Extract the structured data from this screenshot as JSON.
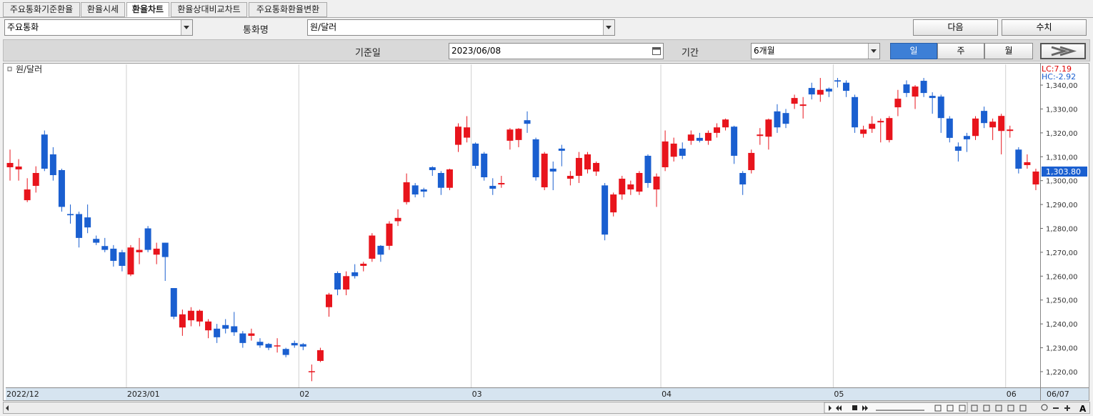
{
  "tabs": [
    "주요통화기준환율",
    "환율시세",
    "환율차트",
    "환율상대비교차트",
    "주요통화환율변환"
  ],
  "active_tab": 2,
  "controls": {
    "category_select": "주요통화",
    "currency_label": "통화명",
    "currency_select": "원/달러",
    "next_button": "다음",
    "values_button": "수치",
    "date_label": "기준일",
    "date_value": "2023/06/08",
    "period_label": "기간",
    "period_select": "6개월",
    "interval_buttons": [
      "일",
      "주",
      "월"
    ],
    "active_interval": 0
  },
  "chart_data": {
    "type": "candlestick",
    "up_color": "#e8141c",
    "down_color": "#1a5fd0",
    "categories": [
      "2022/12",
      null,
      null,
      null,
      null,
      null,
      null,
      null,
      null,
      null,
      null,
      null,
      null,
      null,
      "2023/01",
      null,
      null,
      null,
      null,
      null,
      null,
      null,
      null,
      null,
      null,
      null,
      null,
      null,
      null,
      null,
      null,
      null,
      null,
      null,
      "02",
      null,
      null,
      null,
      null,
      null,
      null,
      null,
      null,
      null,
      null,
      null,
      null,
      null,
      null,
      null,
      null,
      null,
      null,
      null,
      "03",
      null,
      null,
      null,
      null,
      null,
      null,
      null,
      null,
      null,
      null,
      null,
      null,
      null,
      null,
      null,
      null,
      null,
      null,
      null,
      null,
      null,
      "04",
      null,
      null,
      null,
      null,
      null,
      null,
      null,
      null,
      null,
      null,
      null,
      null,
      null,
      null,
      null,
      null,
      null,
      null,
      null,
      "05",
      null,
      null,
      null,
      null,
      null,
      null,
      null,
      null,
      null,
      null,
      null,
      null,
      null,
      null,
      null,
      null,
      null,
      null,
      null,
      "06",
      null,
      null,
      null
    ],
    "x_end_label": "06/07",
    "x_grid": true,
    "series": [
      {
        "name": "원/달러",
        "open": [
          1305.6,
          1304.7,
          1291.8,
          1297.8,
          1319.3,
          1311,
          1304.4,
          1286,
          1286,
          1284.6,
          1275.6,
          1272.6,
          1271.5,
          1270,
          1260.7,
          1270,
          1280,
          1269,
          1274,
          1255,
          1238.5,
          1241.5,
          1241,
          1237.3,
          1238,
          1239.5,
          1239,
          1236,
          1235,
          1232.5,
          1231.6,
          1231,
          1229.5,
          1232,
          1231.5,
          1219.8,
          1224.5,
          1247,
          1261.3,
          1254.4,
          1261.6,
          1264.3,
          1267.3,
          1272.7,
          1272.7,
          1283,
          1291,
          1298,
          1296.3,
          1305.6,
          1303.2,
          1297,
          1315,
          1318,
          1315.5,
          1311.3,
          1297.8,
          1298.4,
          1316.7,
          1317,
          1325.3,
          1317.3,
          1297.2,
          1305,
          1313.4,
          1300.8,
          1302,
          1304.7,
          1303.8,
          1298,
          1286.7,
          1294.2,
          1296.3,
          1295.4,
          1310.4,
          1296.3,
          1305.6,
          1310,
          1313.4,
          1316.7,
          1317.9,
          1316.7,
          1320,
          1322.3,
          1322.6,
          1303.2,
          1304.4,
          1318.7,
          1318.4,
          1329,
          1328.3,
          1332.2,
          1331.3,
          1338.8,
          1336,
          1338.5,
          1342,
          1341,
          1335,
          1319.6,
          1321.7,
          1324.4,
          1317,
          1330.7,
          1340.3,
          1335.2,
          1341.8,
          1335.5,
          1335.2,
          1326,
          1314.3,
          1318.7,
          1318.7,
          1329.2,
          1322.3,
          1320.8,
          1320.8,
          1313,
          1306.5,
          1298.4
        ],
        "high": [
          1313,
          1309,
          1301,
          1306,
          1321,
          1314,
          1305,
          1290,
          1287,
          1290,
          1277,
          1276,
          1273,
          1271,
          1273,
          1276,
          1281,
          1274,
          1274,
          1255,
          1246,
          1247,
          1246,
          1242,
          1240,
          1242,
          1245,
          1237,
          1238,
          1234,
          1232,
          1234,
          1230,
          1233,
          1232,
          1223,
          1230,
          1253,
          1262,
          1262,
          1265,
          1266,
          1278,
          1273,
          1283,
          1288,
          1303,
          1299,
          1297,
          1306,
          1304,
          1305,
          1324,
          1327,
          1316,
          1312,
          1301,
          1302,
          1322,
          1322,
          1329,
          1318,
          1312,
          1308,
          1315,
          1304,
          1312,
          1312,
          1308,
          1299,
          1295,
          1302,
          1300,
          1304,
          1311,
          1303,
          1321,
          1318,
          1316,
          1321,
          1320,
          1321,
          1324,
          1326,
          1323,
          1304,
          1313,
          1322,
          1326,
          1332,
          1330,
          1336,
          1335,
          1341,
          1343,
          1339,
          1343,
          1342,
          1336,
          1323,
          1327,
          1326,
          1327,
          1338,
          1342,
          1340,
          1343,
          1337,
          1336,
          1327,
          1316,
          1320,
          1327,
          1331,
          1326,
          1328,
          1323,
          1314,
          1311,
          1305
        ],
        "low": [
          1300,
          1300,
          1291,
          1295,
          1304,
          1300,
          1287,
          1282,
          1272,
          1278,
          1273,
          1270,
          1264,
          1262,
          1260,
          1265,
          1270,
          1265,
          1258,
          1242,
          1235,
          1239,
          1239,
          1234,
          1232,
          1236,
          1235,
          1230,
          1233,
          1230,
          1229,
          1228,
          1226,
          1230,
          1229,
          1216,
          1224,
          1243,
          1252,
          1252,
          1259,
          1262,
          1266,
          1266,
          1271,
          1281,
          1290,
          1293,
          1293,
          1302,
          1294,
          1296,
          1312,
          1316,
          1305,
          1300,
          1294,
          1297,
          1313,
          1314,
          1320,
          1300,
          1296,
          1296,
          1306,
          1298,
          1299,
          1303,
          1302,
          1275,
          1285,
          1292,
          1294,
          1294,
          1297,
          1289,
          1304,
          1308,
          1309,
          1315,
          1316,
          1315,
          1318,
          1321,
          1307,
          1294,
          1303,
          1315,
          1313,
          1320,
          1322,
          1330,
          1326,
          1334,
          1333,
          1335,
          1339,
          1335,
          1320,
          1318,
          1320,
          1316,
          1316,
          1327,
          1335,
          1330,
          1335,
          1328,
          1320,
          1316,
          1308,
          1312,
          1317,
          1322,
          1317,
          1311,
          1318,
          1303,
          1305,
          1296
        ],
        "close": [
          1307.4,
          1305.9,
          1296.3,
          1303.2,
          1305,
          1302.3,
          1289,
          1285.5,
          1276,
          1280.4,
          1274,
          1271,
          1266.4,
          1264.3,
          1272,
          1271,
          1271,
          1271.5,
          1268,
          1243,
          1244,
          1245.5,
          1245.5,
          1241,
          1234.4,
          1238,
          1236.5,
          1232,
          1236,
          1231,
          1230,
          1231,
          1227,
          1231,
          1230.5,
          1220.2,
          1229,
          1252.3,
          1254.4,
          1260,
          1260,
          1265.2,
          1277,
          1269,
          1282,
          1284.4,
          1299.3,
          1294.2,
          1295.4,
          1304.4,
          1297,
          1304.7,
          1322.6,
          1322.3,
          1306.2,
          1301.4,
          1296.6,
          1299,
          1321.4,
          1321.7,
          1323.8,
          1301.4,
          1311.3,
          1303.8,
          1312.5,
          1302,
          1309.5,
          1311,
          1307.4,
          1277.4,
          1294.2,
          1300.8,
          1298.4,
          1303.2,
          1299,
          1301.7,
          1316.4,
          1315.5,
          1310.4,
          1319.3,
          1316.7,
          1320,
          1322.3,
          1325.6,
          1310.4,
          1298.4,
          1311.6,
          1319.3,
          1325.6,
          1322.3,
          1323.8,
          1334.6,
          1331.9,
          1336.1,
          1338,
          1337.3,
          1341.5,
          1337.6,
          1322.3,
          1321.4,
          1323.8,
          1325,
          1326.2,
          1334.3,
          1336.7,
          1339.4,
          1336.7,
          1334.6,
          1326.2,
          1317.9,
          1312.5,
          1317.3,
          1326,
          1324.1,
          1324.7,
          1327.1,
          1321.4,
          1305,
          1307.7,
          1303.8
        ]
      }
    ],
    "ylim": [
      1213.4,
      1348.7
    ],
    "yticks": [
      {
        "value": 1220,
        "label": "1,220,00"
      },
      {
        "value": 1230,
        "label": "1,230,00"
      },
      {
        "value": 1240,
        "label": "1,240,00"
      },
      {
        "value": 1250,
        "label": "1,250,00"
      },
      {
        "value": 1260,
        "label": "1,260,00"
      },
      {
        "value": 1270,
        "label": "1,270,00"
      },
      {
        "value": 1280,
        "label": "1,280,00"
      },
      {
        "value": 1290,
        "label": "1,290,00"
      },
      {
        "value": 1300,
        "label": "1,300,00"
      },
      {
        "value": 1310,
        "label": "1,310,00"
      },
      {
        "value": 1320,
        "label": "1,320,00"
      },
      {
        "value": 1330,
        "label": "1,330,00"
      },
      {
        "value": 1340,
        "label": "1,340,00"
      }
    ],
    "annotations": [
      {
        "text": "LC:7.19",
        "color": "#e00000"
      },
      {
        "text": "HC:-2.92",
        "color": "#1a5fd0"
      }
    ],
    "current_price": {
      "value": 1303.8,
      "label": "1,303.80"
    }
  }
}
